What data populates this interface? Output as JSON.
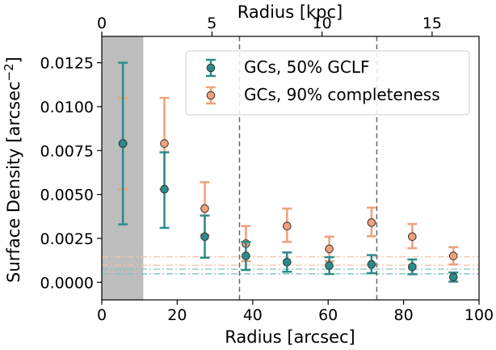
{
  "chart_data": {
    "type": "scatter",
    "xlabel": "Radius [arcsec]",
    "ylabel": "Surface Density [arcsec",
    "ylabel_exp": "−2",
    "ylabel_close": "]",
    "top_xlabel": "Radius [kpc]",
    "xlim": [
      0,
      100
    ],
    "ylim": [
      -0.001,
      0.014
    ],
    "top_xlim_kpc": [
      0,
      17.13
    ],
    "x_ticks": [
      0,
      20,
      40,
      60,
      80,
      100
    ],
    "x_tick_labels": [
      "0",
      "20",
      "40",
      "60",
      "80",
      "100"
    ],
    "y_ticks": [
      0.0,
      0.0025,
      0.005,
      0.0075,
      0.01,
      0.0125
    ],
    "y_tick_labels": [
      "0.0000",
      "0.0025",
      "0.0050",
      "0.0075",
      "0.0100",
      "0.0125"
    ],
    "top_ticks_kpc": [
      0,
      5,
      10,
      15
    ],
    "top_tick_labels": [
      "0",
      "5",
      "10",
      "15"
    ],
    "shaded_region_x": [
      0,
      11
    ],
    "vlines_x": [
      36.5,
      72.9
    ],
    "series": [
      {
        "name": "GCs, 50% GCLF",
        "color": "#2a8c8a",
        "x": [
          5.6,
          16.6,
          27.3,
          38.2,
          49.1,
          60.3,
          71.5,
          82.3,
          93.2
        ],
        "y": [
          0.0079,
          0.0053,
          0.0026,
          0.0015,
          0.00115,
          0.00095,
          0.00102,
          0.00088,
          0.0003
        ],
        "yerr_low": [
          0.0046,
          0.0022,
          0.0012,
          0.0008,
          0.00055,
          0.00048,
          0.0005,
          0.00042,
          0.00026
        ],
        "yerr_high": [
          0.0046,
          0.0021,
          0.0012,
          0.0008,
          0.00055,
          0.00048,
          0.00053,
          0.00042,
          0.00026
        ],
        "background_level": [
          0.00048,
          0.00075
        ]
      },
      {
        "name": "GCs, 90% completeness",
        "color": "#f0a07a",
        "x": [
          5.6,
          16.6,
          27.3,
          38.2,
          49.1,
          60.3,
          71.5,
          82.3,
          93.2
        ],
        "y": [
          0.0079,
          0.0079,
          0.0042,
          0.0022,
          0.0032,
          0.0019,
          0.0034,
          0.0026,
          0.0015
        ],
        "yerr_low": [
          0.0026,
          0.0026,
          0.0015,
          0.001,
          0.0009,
          0.0007,
          0.00078,
          0.00066,
          0.00048
        ],
        "yerr_high": [
          0.0026,
          0.0026,
          0.0015,
          0.001,
          0.001,
          0.0007,
          0.00085,
          0.00072,
          0.0005
        ],
        "background_level": [
          0.00098,
          0.00145
        ]
      }
    ],
    "legend_position": "top-right",
    "grid": false
  }
}
